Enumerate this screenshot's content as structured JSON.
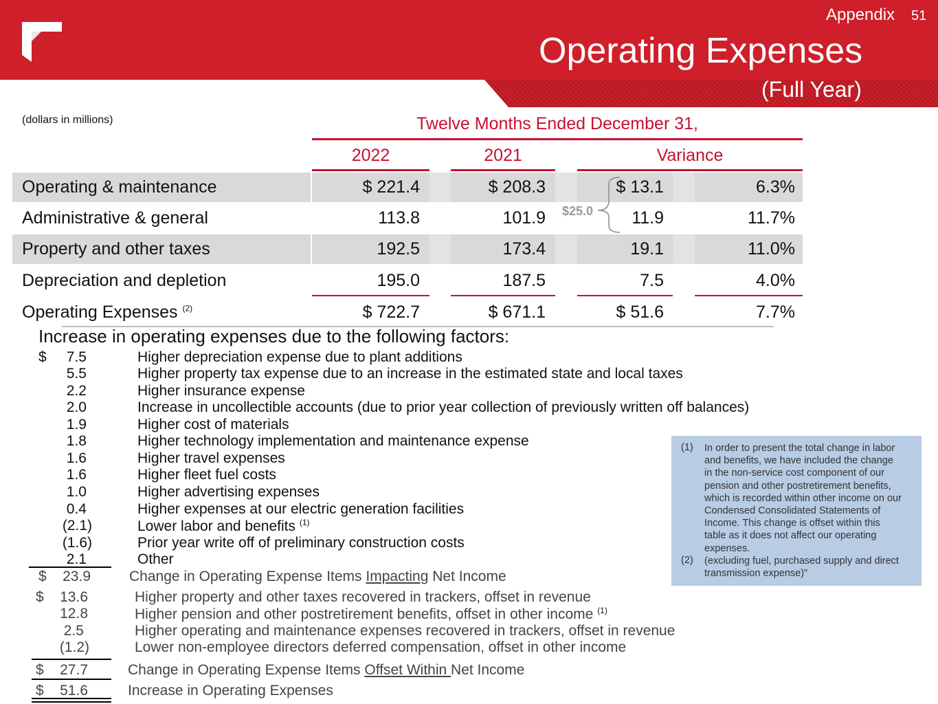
{
  "header": {
    "section": "Appendix",
    "page_number": "51",
    "title": "Operating Expenses",
    "subtitle": "(Full Year)",
    "brand_color": "#ce1f2a"
  },
  "table": {
    "units_note": "(dollars in millions)",
    "period_header": "Twelve Months Ended December 31,",
    "columns": [
      "2022",
      "2021",
      "Variance"
    ],
    "rows": [
      {
        "label": "Operating & maintenance",
        "y2022": "$ 221.4",
        "y2021": "$ 208.3",
        "var_amt": "$ 13.1",
        "var_pct": "6.3%"
      },
      {
        "label": "Administrative & general",
        "y2022": "113.8",
        "y2021": "101.9",
        "var_amt": "11.9",
        "var_pct": "11.7%"
      },
      {
        "label": "Property and other taxes",
        "y2022": "192.5",
        "y2021": "173.4",
        "var_amt": "19.1",
        "var_pct": "11.0%"
      },
      {
        "label": "Depreciation and depletion",
        "y2022": "195.0",
        "y2021": "187.5",
        "var_amt": "7.5",
        "var_pct": "4.0%"
      }
    ],
    "total": {
      "label": "Operating Expenses",
      "note": "(2)",
      "y2022": "$ 722.7",
      "y2021": "$ 671.1",
      "var_amt": "$ 51.6",
      "var_pct": "7.7%"
    },
    "brace_note": "$25.0"
  },
  "factors": {
    "title": "Increase in operating expenses due to the following factors:",
    "currency": "$",
    "items": [
      {
        "amount": "7.5",
        "text": "Higher depreciation expense due to plant additions"
      },
      {
        "amount": "5.5",
        "text": "Higher property tax expense due to an increase in the estimated state and local taxes"
      },
      {
        "amount": "2.2",
        "text": "Higher insurance expense"
      },
      {
        "amount": "2.0",
        "text": "Increase in uncollectible accounts (due to prior year collection of previously written off balances)"
      },
      {
        "amount": "1.9",
        "text": "Higher cost of materials"
      },
      {
        "amount": "1.8",
        "text": "Higher technology implementation and maintenance expense"
      },
      {
        "amount": "1.6",
        "text": "Higher travel expenses"
      },
      {
        "amount": "1.6",
        "text": "Higher fleet fuel costs"
      },
      {
        "amount": "1.0",
        "text": "Higher advertising expenses"
      },
      {
        "amount": "0.4",
        "text": "Higher expenses at our electric generation facilities"
      },
      {
        "amount": "(2.1)",
        "text": "Lower labor and benefits",
        "note": "(1)"
      },
      {
        "amount": "(1.6)",
        "text": "Prior year write off of preliminary construction costs"
      },
      {
        "amount": "2.1",
        "text": "Other"
      }
    ],
    "subtotal_impacting": {
      "amount": "23.9",
      "text_pre": "Change in Operating Expense Items ",
      "text_ul": "Impacting",
      "text_post": " Net Income"
    },
    "offset_items": [
      {
        "amount": "13.6",
        "text": "Higher property and other taxes recovered in trackers, offset in revenue"
      },
      {
        "amount": "12.8",
        "text": "Higher pension and other postretirement benefits, offset in other income",
        "note": "(1)"
      },
      {
        "amount": "2.5",
        "text": "Higher operating and maintenance expenses recovered in trackers, offset in revenue"
      },
      {
        "amount": "(1.2)",
        "text": "Lower non-employee directors deferred compensation, offset in other income"
      }
    ],
    "subtotal_offset": {
      "amount": "27.7",
      "text_pre": "Change in Operating Expense Items ",
      "text_ul": "Offset Within ",
      "text_post": "Net Income"
    },
    "grand_total": {
      "amount": "51.6",
      "text": "Increase in Operating Expenses"
    }
  },
  "footnotes": {
    "n1": "(1)",
    "n1_lines": [
      "In order to present the total change in labor",
      "and benefits, we have included the change",
      "in the non-service cost component of our",
      "pension and other postretirement benefits,",
      "which is recorded within other income on our",
      "Condensed Consolidated Statements of",
      "Income. This change is offset within this",
      "table as it does not affect our operating",
      "expenses."
    ],
    "n2": "(2)",
    "n2_lines": [
      "(excluding fuel, purchased supply and direct",
      "transmission expense)\""
    ]
  }
}
